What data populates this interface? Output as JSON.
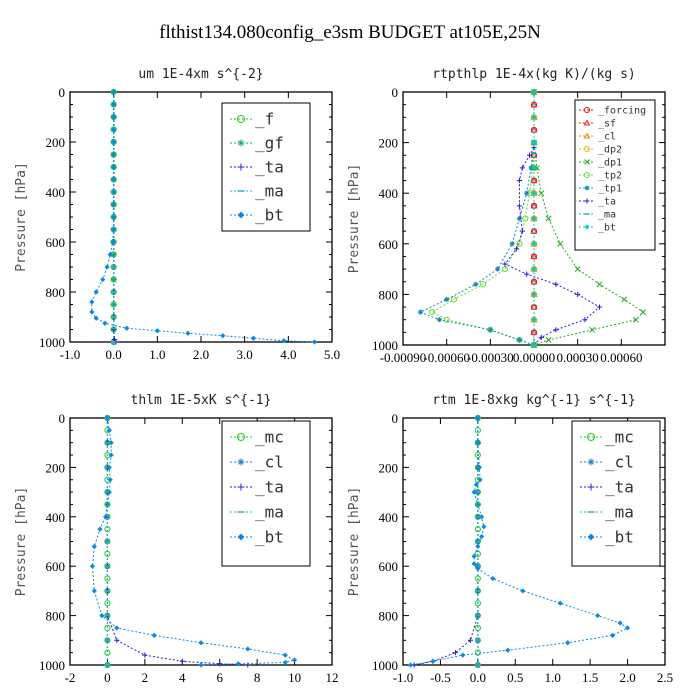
{
  "figure_title": "flthist134.080config_e3sm  BUDGET at105E,25N",
  "chart_data": [
    {
      "type": "line",
      "title": "um  1E-4xm s^{-2}",
      "ylabel": "Pressure [hPa]",
      "xlim": [
        -1.0,
        5.0
      ],
      "ylim": [
        1000,
        0
      ],
      "xticks": [
        -1.0,
        0.0,
        1.0,
        2.0,
        3.0,
        4.0,
        5.0
      ],
      "xtick_labels": [
        "-1.0",
        "0.0",
        "1.0",
        "2.0",
        "3.0",
        "4.0",
        "5.0"
      ],
      "yticks": [
        0,
        200,
        400,
        600,
        800,
        1000
      ],
      "legend_position": "top-right",
      "series": [
        {
          "name": "_f",
          "color": "#22cc22",
          "marker": "circle",
          "x": [
            0,
            0,
            0,
            0,
            0,
            0,
            0,
            0,
            0,
            0,
            0,
            0,
            0,
            0,
            0,
            0,
            0,
            0,
            0,
            0,
            0
          ],
          "y": [
            0,
            50,
            100,
            150,
            200,
            250,
            300,
            350,
            400,
            450,
            500,
            550,
            600,
            650,
            700,
            750,
            800,
            850,
            900,
            950,
            1000
          ]
        },
        {
          "name": "_gf",
          "color": "#11aa77",
          "marker": "star",
          "x": [
            0,
            0,
            0,
            0,
            0,
            0,
            0,
            0,
            0,
            0,
            0,
            0,
            0,
            0,
            0,
            0,
            0,
            0,
            0,
            0,
            0
          ],
          "y": [
            0,
            50,
            100,
            150,
            200,
            250,
            300,
            350,
            400,
            450,
            500,
            550,
            600,
            650,
            700,
            750,
            800,
            850,
            900,
            950,
            1000
          ]
        },
        {
          "name": "_ta",
          "color": "#2222cc",
          "marker": "plus",
          "x": [
            0,
            0,
            0,
            0,
            0,
            0,
            0,
            0,
            0,
            0,
            0,
            0.02,
            0.05
          ],
          "y": [
            0,
            100,
            200,
            300,
            400,
            500,
            600,
            700,
            800,
            900,
            950,
            990,
            1000
          ]
        },
        {
          "name": "_ma",
          "color": "#33aacc",
          "marker": "dash",
          "x": [
            0,
            0,
            0,
            0,
            0,
            0,
            0,
            0,
            0,
            0,
            0
          ],
          "y": [
            0,
            100,
            200,
            300,
            400,
            500,
            600,
            700,
            800,
            900,
            1000
          ]
        },
        {
          "name": "_bt",
          "color": "#0b8be0",
          "marker": "diamond",
          "x": [
            0,
            0,
            0,
            0,
            0,
            0,
            0,
            0,
            0,
            0,
            0,
            0,
            -0.02,
            -0.08,
            -0.15,
            -0.25,
            -0.4,
            -0.5,
            -0.5,
            -0.4,
            -0.2,
            0.3,
            1.0,
            1.7,
            2.5,
            3.2,
            3.9,
            4.6
          ],
          "y": [
            0,
            50,
            100,
            150,
            200,
            250,
            300,
            350,
            400,
            450,
            500,
            550,
            600,
            650,
            700,
            750,
            800,
            840,
            880,
            905,
            925,
            945,
            955,
            965,
            975,
            985,
            995,
            1000
          ]
        }
      ]
    },
    {
      "type": "line",
      "title": "rtpthlp  1E-4x(kg K)/(kg s)",
      "ylabel": "Pressure [hPa]",
      "xlim": [
        -0.0009,
        0.0009
      ],
      "ylim": [
        1000,
        0
      ],
      "xticks": [
        -0.0009,
        -0.0006,
        -0.0003,
        0.0,
        0.0003,
        0.0006
      ],
      "xtick_labels": [
        "-0.00090",
        "-0.00060",
        "-0.00030",
        "0.00000",
        "0.00030",
        "0.00060"
      ],
      "yticks": [
        0,
        200,
        400,
        600,
        800,
        1000
      ],
      "legend_position": "top-right",
      "series": [
        {
          "name": "_forcing",
          "color": "#dd1111",
          "marker": "circle",
          "x": [
            0,
            0,
            0,
            0,
            0,
            0,
            0,
            0,
            0,
            0,
            0,
            0,
            0,
            0,
            0,
            0,
            0,
            0,
            0,
            0,
            0
          ],
          "y": [
            0,
            50,
            100,
            150,
            200,
            250,
            300,
            350,
            400,
            450,
            500,
            550,
            600,
            650,
            700,
            750,
            800,
            850,
            900,
            950,
            1000
          ]
        },
        {
          "name": "_sf",
          "color": "#ee2222",
          "marker": "triangle",
          "x": [
            0,
            0,
            0,
            0,
            0,
            0,
            0,
            0,
            0,
            0,
            0,
            0,
            0,
            0,
            0,
            0,
            0,
            0,
            0,
            0,
            0
          ],
          "y": [
            0,
            50,
            100,
            150,
            200,
            250,
            300,
            350,
            400,
            450,
            500,
            550,
            600,
            650,
            700,
            750,
            800,
            850,
            900,
            950,
            1000
          ]
        },
        {
          "name": "_cl",
          "color": "#ee8800",
          "marker": "triangle",
          "x": [
            0,
            0,
            0,
            0,
            0,
            0,
            0,
            0,
            0,
            0,
            0
          ],
          "y": [
            0,
            100,
            200,
            300,
            400,
            500,
            600,
            700,
            800,
            900,
            1000
          ]
        },
        {
          "name": "_dp2",
          "color": "#ddbb00",
          "marker": "circle",
          "x": [
            0,
            0,
            0,
            0,
            0,
            0,
            0,
            0,
            0,
            0,
            0
          ],
          "y": [
            0,
            100,
            200,
            300,
            400,
            500,
            600,
            700,
            800,
            900,
            1000
          ]
        },
        {
          "name": "_dp1",
          "color": "#22aa22",
          "marker": "cross",
          "x": [
            0,
            0,
            2e-05,
            5e-05,
            0.0001,
            0.00018,
            0.0003,
            0.00045,
            0.00062,
            0.00075,
            0.0007,
            0.0004,
            0.0001,
            0
          ],
          "y": [
            0,
            200,
            300,
            400,
            500,
            600,
            700,
            760,
            820,
            870,
            900,
            940,
            980,
            1000
          ]
        },
        {
          "name": "_tp2",
          "color": "#66dd33",
          "marker": "circle",
          "x": [
            0,
            0,
            -1e-05,
            -3e-05,
            -6e-05,
            -0.0001,
            -0.0002,
            -0.00035,
            -0.00055,
            -0.0007,
            -0.0006,
            -0.0003,
            -0.0001,
            0
          ],
          "y": [
            0,
            200,
            300,
            400,
            500,
            600,
            700,
            760,
            820,
            870,
            900,
            940,
            980,
            1000
          ]
        },
        {
          "name": "_tp1",
          "color": "#1188bb",
          "marker": "star",
          "x": [
            0,
            0,
            -2e-05,
            -5e-05,
            -0.0001,
            -0.00015,
            -0.00025,
            -0.0004,
            -0.0006,
            -0.00078,
            -0.00065,
            -0.0003,
            -0.0001,
            0
          ],
          "y": [
            0,
            200,
            300,
            400,
            500,
            600,
            700,
            760,
            820,
            870,
            900,
            940,
            980,
            1000
          ]
        },
        {
          "name": "_ta",
          "color": "#2222dd",
          "marker": "plus",
          "x": [
            0,
            -3e-05,
            -8e-05,
            -0.0001,
            -0.0001,
            -8e-05,
            -0.00012,
            -0.0002,
            -5e-05,
            0.00015,
            0.0003,
            0.00045,
            0.00035,
            0.00015,
            5e-05,
            0
          ],
          "y": [
            220,
            250,
            300,
            350,
            450,
            550,
            620,
            680,
            720,
            760,
            800,
            850,
            900,
            940,
            970,
            1000
          ]
        },
        {
          "name": "_ma",
          "color": "#33aacc",
          "marker": "dash",
          "x": [
            0,
            0,
            0,
            0,
            0,
            0,
            0,
            0,
            0,
            0,
            0
          ],
          "y": [
            0,
            100,
            200,
            300,
            400,
            500,
            600,
            700,
            800,
            900,
            1000
          ]
        },
        {
          "name": "_bt",
          "color": "#00cccc",
          "marker": "diamond",
          "x": [
            0,
            0,
            0,
            0,
            0,
            0,
            0,
            0,
            0,
            0,
            0
          ],
          "y": [
            0,
            100,
            200,
            300,
            400,
            500,
            600,
            700,
            800,
            900,
            1000
          ]
        }
      ]
    },
    {
      "type": "line",
      "title": "thlm  1E-5xK s^{-1}",
      "ylabel": "Pressure [hPa]",
      "xlim": [
        -2,
        12
      ],
      "ylim": [
        1000,
        0
      ],
      "xticks": [
        -2,
        0,
        2,
        4,
        6,
        8,
        10,
        12
      ],
      "xtick_labels": [
        "-2",
        "0",
        "2",
        "4",
        "6",
        "8",
        "10",
        "12"
      ],
      "yticks": [
        0,
        200,
        400,
        600,
        800,
        1000
      ],
      "legend_position": "top-right",
      "series": [
        {
          "name": "_mc",
          "color": "#22cc22",
          "marker": "circle",
          "x": [
            0,
            0,
            0,
            0,
            0,
            0,
            0,
            0,
            0,
            0,
            0,
            0,
            0,
            0,
            0,
            0,
            0,
            0,
            0,
            0,
            0
          ],
          "y": [
            0,
            50,
            100,
            150,
            200,
            250,
            300,
            350,
            400,
            450,
            500,
            550,
            600,
            650,
            700,
            750,
            800,
            850,
            900,
            950,
            1000
          ]
        },
        {
          "name": "_cl",
          "color": "#1188bb",
          "marker": "star",
          "x": [
            0,
            0,
            0,
            0,
            0,
            0,
            0,
            0,
            0,
            0,
            0
          ],
          "y": [
            0,
            100,
            200,
            300,
            400,
            500,
            600,
            700,
            800,
            900,
            1000
          ]
        },
        {
          "name": "_ta",
          "color": "#2222cc",
          "marker": "plus",
          "x": [
            0,
            0,
            0,
            0,
            0,
            0,
            0,
            0,
            0,
            0.5,
            2,
            4,
            6,
            7.5
          ],
          "y": [
            0,
            100,
            200,
            300,
            400,
            500,
            600,
            700,
            800,
            900,
            960,
            985,
            995,
            1000
          ]
        },
        {
          "name": "_ma",
          "color": "#33aacc",
          "marker": "dash",
          "x": [
            0,
            0,
            0,
            0,
            0,
            0,
            0,
            0,
            0,
            0,
            0
          ],
          "y": [
            0,
            100,
            200,
            300,
            400,
            500,
            600,
            700,
            800,
            900,
            1000
          ]
        },
        {
          "name": "_bt",
          "color": "#0b8be0",
          "marker": "diamond",
          "x": [
            0,
            0.1,
            0.2,
            0.2,
            0.1,
            0.15,
            0.1,
            0,
            -0.1,
            -0.4,
            -0.7,
            -0.8,
            -0.7,
            -0.3,
            0.5,
            2.5,
            5,
            7.5,
            9.5,
            10,
            9.5,
            7,
            5
          ],
          "y": [
            0,
            50,
            100,
            150,
            200,
            250,
            300,
            350,
            400,
            450,
            520,
            600,
            700,
            800,
            850,
            880,
            910,
            935,
            960,
            980,
            990,
            995,
            1000
          ]
        }
      ]
    },
    {
      "type": "line",
      "title": "rtm  1E-8xkg kg^{-1} s^{-1}",
      "ylabel": "Pressure [hPa]",
      "xlim": [
        -1.0,
        2.5
      ],
      "ylim": [
        1000,
        0
      ],
      "xticks": [
        -1.0,
        -0.5,
        0.0,
        0.5,
        1.0,
        1.5,
        2.0,
        2.5
      ],
      "xtick_labels": [
        "-1.0",
        "-0.5",
        "0.0",
        "0.5",
        "1.0",
        "1.5",
        "2.0",
        "2.5"
      ],
      "yticks": [
        0,
        200,
        400,
        600,
        800,
        1000
      ],
      "legend_position": "top-right",
      "series": [
        {
          "name": "_mc",
          "color": "#22cc22",
          "marker": "circle",
          "x": [
            0,
            0,
            0,
            0,
            0,
            0,
            0,
            0,
            0,
            0,
            0,
            0,
            0,
            0,
            0,
            0,
            0,
            0,
            0,
            0,
            0
          ],
          "y": [
            0,
            50,
            100,
            150,
            200,
            250,
            300,
            350,
            400,
            450,
            500,
            550,
            600,
            650,
            700,
            750,
            800,
            850,
            900,
            950,
            1000
          ]
        },
        {
          "name": "_cl",
          "color": "#1188bb",
          "marker": "star",
          "x": [
            0,
            0,
            0,
            0,
            0,
            0,
            0,
            0,
            0,
            0,
            0
          ],
          "y": [
            0,
            100,
            200,
            300,
            400,
            500,
            600,
            700,
            800,
            900,
            1000
          ]
        },
        {
          "name": "_ta",
          "color": "#2222cc",
          "marker": "plus",
          "x": [
            0,
            0,
            0,
            0,
            0,
            0,
            0,
            0,
            0,
            -0.1,
            -0.3,
            -0.6,
            -0.85
          ],
          "y": [
            0,
            100,
            200,
            300,
            400,
            500,
            600,
            700,
            800,
            900,
            950,
            985,
            1000
          ]
        },
        {
          "name": "_ma",
          "color": "#33aacc",
          "marker": "dash",
          "x": [
            0,
            0,
            0,
            0,
            0,
            0,
            0,
            0,
            0,
            0,
            0
          ],
          "y": [
            0,
            100,
            200,
            300,
            400,
            500,
            600,
            700,
            800,
            900,
            1000
          ]
        },
        {
          "name": "_bt",
          "color": "#0b8be0",
          "marker": "diamond",
          "x": [
            0,
            0,
            0.02,
            0.03,
            -0.02,
            -0.05,
            0,
            0.05,
            0.08,
            0.05,
            0,
            -0.05,
            -0.05,
            0,
            0.2,
            0.6,
            1.1,
            1.6,
            1.9,
            2.0,
            1.8,
            1.2,
            0.4,
            -0.2,
            -0.6,
            -0.9
          ],
          "y": [
            0,
            100,
            200,
            250,
            270,
            300,
            350,
            400,
            440,
            480,
            520,
            560,
            590,
            610,
            650,
            700,
            750,
            800,
            830,
            850,
            880,
            910,
            940,
            960,
            985,
            1000
          ]
        }
      ]
    }
  ]
}
